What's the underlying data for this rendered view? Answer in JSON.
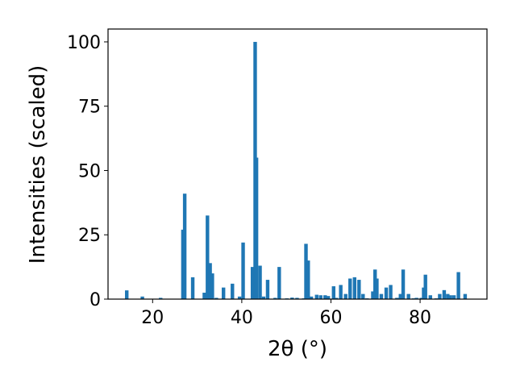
{
  "chart_data": {
    "type": "bar",
    "xlabel": "2θ (°)",
    "ylabel": "Intensities (scaled)",
    "xlim": [
      10,
      95
    ],
    "ylim": [
      0,
      105
    ],
    "xticks": [
      20,
      40,
      60,
      80
    ],
    "yticks": [
      0,
      25,
      50,
      75,
      100
    ],
    "bar_color": "#1f77b4",
    "grid": false,
    "series": [
      {
        "x": [
          14.2,
          17.7,
          21.8,
          26.8,
          27.2,
          29.0,
          31.6,
          32.3,
          32.9,
          33.4,
          34.3,
          35.9,
          37.9,
          39.5,
          40.3,
          42.4,
          43.0,
          43.3,
          44.1,
          44.9,
          45.8,
          47.5,
          48.4,
          50.1,
          51.3,
          52.4,
          53.9,
          54.4,
          54.9,
          55.6,
          56.8,
          57.7,
          58.7,
          59.4,
          60.6,
          61.2,
          62.2,
          63.3,
          64.3,
          65.3,
          66.3,
          67.2,
          68.1,
          69.4,
          69.9,
          70.3,
          71.3,
          72.4,
          73.4,
          74.8,
          75.6,
          76.2,
          77.4,
          78.5,
          79.2,
          80.3,
          80.8,
          81.2,
          82.3,
          83.6,
          84.4,
          85.4,
          86.2,
          86.8,
          87.6,
          88.6,
          90.1
        ],
        "values": [
          3.4,
          1.0,
          0.5,
          27,
          41,
          8.5,
          2.5,
          32.5,
          14,
          10,
          0.5,
          4.5,
          6,
          1,
          22,
          12.5,
          100,
          55,
          13,
          1,
          7.5,
          0.5,
          12.5,
          0.3,
          0.6,
          0.5,
          0.3,
          21.5,
          15,
          1,
          1.7,
          1.5,
          1.5,
          1.2,
          5,
          0.5,
          5.5,
          2,
          8,
          8.5,
          7.5,
          2,
          0.3,
          3,
          11.5,
          8,
          2,
          4.5,
          5.5,
          0.5,
          2,
          11.5,
          2,
          0.3,
          0.5,
          0.5,
          4.5,
          9.5,
          1.5,
          0.3,
          2,
          3.5,
          2,
          1.5,
          1.5,
          10.5,
          2
        ]
      }
    ]
  }
}
